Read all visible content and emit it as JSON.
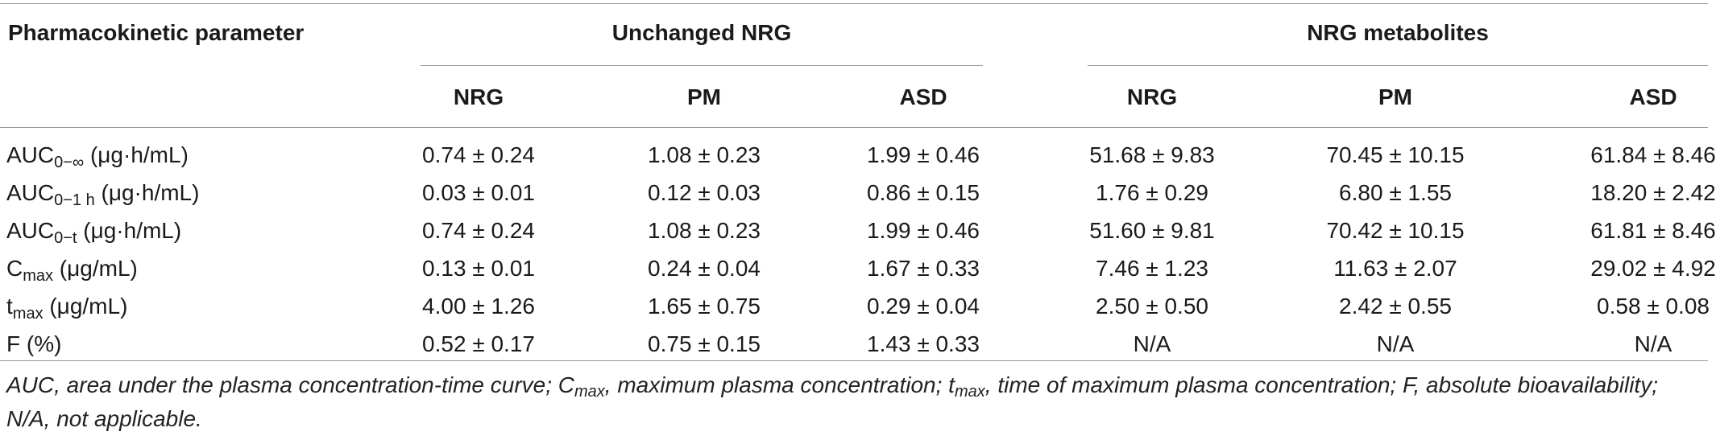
{
  "table": {
    "header": {
      "param_label": "Pharmacokinetic parameter",
      "group1": "Unchanged NRG",
      "group2": "NRG metabolites",
      "cols": [
        "NRG",
        "PM",
        "ASD",
        "NRG",
        "PM",
        "ASD"
      ]
    },
    "rows": [
      {
        "label_base": "AUC",
        "label_sub": "0−∞",
        "label_rest": " (μg·h/mL)",
        "values": [
          "0.74 ± 0.24",
          "1.08 ± 0.23",
          "1.99 ± 0.46",
          "51.68 ± 9.83",
          "70.45 ± 10.15",
          "61.84 ± 8.46"
        ]
      },
      {
        "label_base": "AUC",
        "label_sub": "0−1 h",
        "label_rest": " (μg·h/mL)",
        "values": [
          "0.03 ± 0.01",
          "0.12 ± 0.03",
          "0.86 ± 0.15",
          "1.76 ± 0.29",
          "6.80 ± 1.55",
          "18.20 ± 2.42"
        ]
      },
      {
        "label_base": "AUC",
        "label_sub": "0−t",
        "label_rest": " (μg·h/mL)",
        "values": [
          "0.74 ± 0.24",
          "1.08 ± 0.23",
          "1.99 ± 0.46",
          "51.60 ± 9.81",
          "70.42 ± 10.15",
          "61.81 ± 8.46"
        ]
      },
      {
        "label_base": "C",
        "label_sub": "max",
        "label_rest": " (μg/mL)",
        "values": [
          "0.13 ± 0.01",
          "0.24 ± 0.04",
          "1.67 ± 0.33",
          "7.46 ± 1.23",
          "11.63 ± 2.07",
          "29.02 ± 4.92"
        ]
      },
      {
        "label_base": "t",
        "label_sub": "max",
        "label_rest": " (μg/mL)",
        "values": [
          "4.00 ± 1.26",
          "1.65 ± 0.75",
          "0.29 ± 0.04",
          "2.50 ± 0.50",
          "2.42 ± 0.55",
          "0.58 ± 0.08"
        ]
      },
      {
        "label_base": "F (%)",
        "label_sub": "",
        "label_rest": "",
        "values": [
          "0.52 ± 0.17",
          "0.75 ± 0.15",
          "1.43 ± 0.33",
          "N/A",
          "N/A",
          "N/A"
        ]
      }
    ]
  },
  "footnote": {
    "part1": "AUC, area under the plasma concentration-time curve; C",
    "sub1": "max",
    "part2": ", maximum plasma concentration; t",
    "sub2": "max",
    "part3": ", time of maximum plasma concentration; F, absolute bioavailability; N/A, not applicable."
  }
}
